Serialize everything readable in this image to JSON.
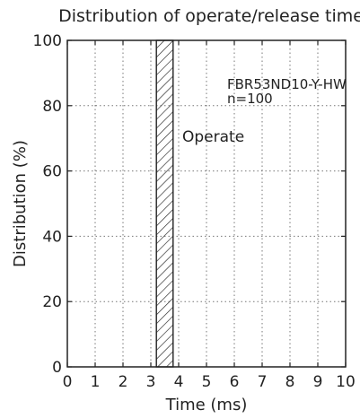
{
  "chart_data": {
    "type": "bar",
    "title": "Distribution of operate/release time",
    "xlabel": "Time (ms)",
    "ylabel": "Distribution (%)",
    "xlim": [
      0,
      10
    ],
    "ylim": [
      0,
      100
    ],
    "xticks": [
      "0",
      "1",
      "2",
      "3",
      "4",
      "5",
      "6",
      "7",
      "8",
      "9",
      "10"
    ],
    "yticks": [
      "0",
      "20",
      "40",
      "60",
      "80",
      "100"
    ],
    "grid": true,
    "series": [
      {
        "name": "Operate",
        "range": [
          3.2,
          3.8
        ],
        "values": [
          100
        ],
        "fill": "hatched"
      }
    ],
    "annotations": {
      "model": "FBR53ND10-Y-HW",
      "sample": "n=100",
      "series_label": "Operate"
    }
  },
  "colors": {
    "ink": "#222222",
    "grid": "#777777",
    "background": "#ffffff"
  }
}
